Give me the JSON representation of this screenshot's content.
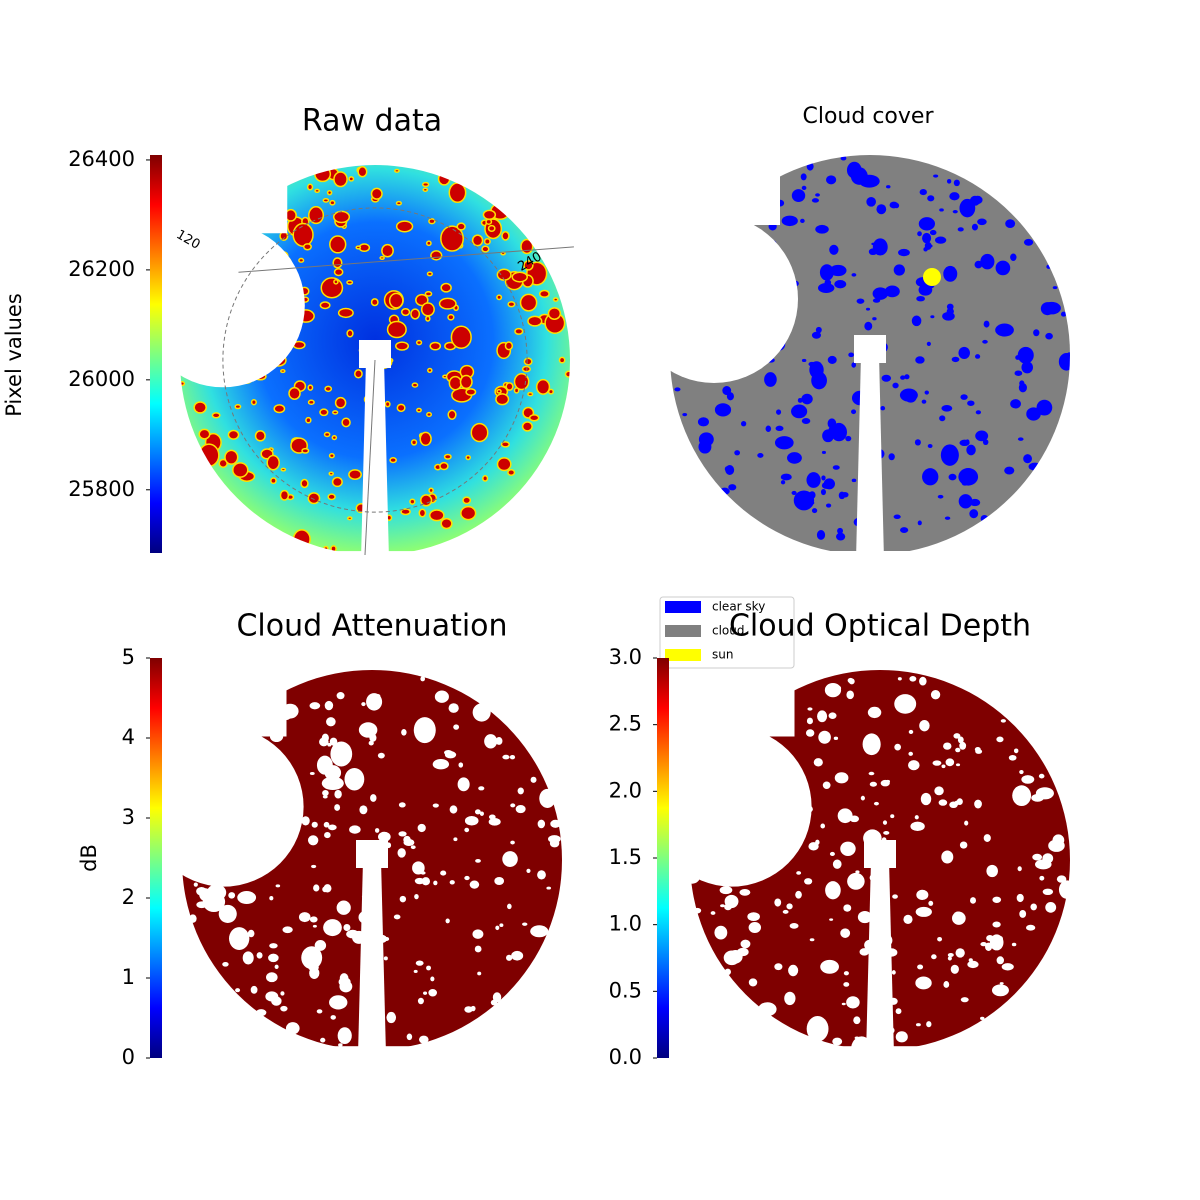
{
  "chart_data": [
    {
      "type": "image",
      "title": "Raw data",
      "colormap": "jet",
      "colorbar_label": "Pixel values",
      "ylim": [
        25685,
        26409
      ],
      "yticks": [
        25800,
        26000,
        26200,
        26400
      ],
      "annotations": [
        "120",
        "240"
      ]
    },
    {
      "type": "category-image",
      "title": "Cloud cover",
      "series": [
        {
          "name": "clear sky",
          "color": "#0000ff"
        },
        {
          "name": "cloud",
          "color": "#808080"
        },
        {
          "name": "sun",
          "color": "#ffff00"
        }
      ]
    },
    {
      "type": "image",
      "title": "Cloud Attenuation",
      "colormap": "jet",
      "colorbar_label": "dB",
      "ylim": [
        0,
        5
      ],
      "yticks": [
        0,
        1,
        2,
        3,
        4,
        5
      ]
    },
    {
      "type": "image",
      "title": "Cloud Optical Depth",
      "colormap": "jet",
      "ylim": [
        0,
        3
      ],
      "yticks": [
        {
          "value": 0,
          "label": "0.0"
        },
        0.5,
        {
          "value": 1,
          "label": "1.0"
        },
        1.5,
        {
          "value": 2,
          "label": "2.0"
        },
        2.5,
        {
          "value": 3,
          "label": "3.0"
        }
      ]
    }
  ]
}
